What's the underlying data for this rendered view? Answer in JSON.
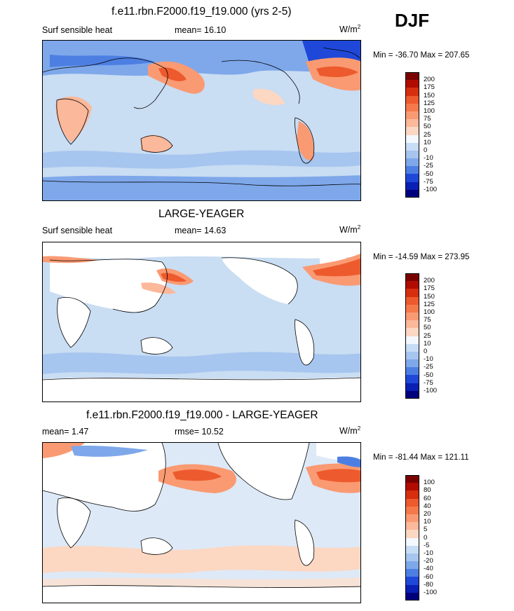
{
  "season": "DJF",
  "panels": [
    {
      "title": "f.e11.rbn.F2000.f19_f19.000 (yrs 2-5)",
      "variable": "Surf sensible heat",
      "stat1": "mean=  16.10",
      "stat2": "",
      "units": "W/m",
      "units_exp": "2",
      "minmax": "Min = -36.70 Max = 207.65",
      "levels": [
        "200",
        "175",
        "150",
        "125",
        "100",
        "75",
        "50",
        "25",
        "10",
        "0",
        "-10",
        "-25",
        "-50",
        "-75",
        "-100"
      ],
      "colors": [
        "#7a0000",
        "#b00c00",
        "#d72e10",
        "#ed5a2d",
        "#f6794b",
        "#fa9a72",
        "#fbb89a",
        "#fcd7c2",
        "#f3f8ff",
        "#c7dcf5",
        "#a6c5ef",
        "#7ea8ea",
        "#4d7fe3",
        "#1f48d9",
        "#0a1fb3",
        "#00007d"
      ]
    },
    {
      "title": "LARGE-YEAGER",
      "variable": "Surf sensible heat",
      "stat1": "mean=  14.63",
      "stat2": "",
      "units": "W/m",
      "units_exp": "2",
      "minmax": "Min = -14.59 Max = 273.95",
      "levels": [
        "200",
        "175",
        "150",
        "125",
        "100",
        "75",
        "50",
        "25",
        "10",
        "0",
        "-10",
        "-25",
        "-50",
        "-75",
        "-100"
      ],
      "colors": [
        "#7a0000",
        "#b00c00",
        "#d72e10",
        "#ed5a2d",
        "#f6794b",
        "#fa9a72",
        "#fbb89a",
        "#fcd7c2",
        "#f3f8ff",
        "#c7dcf5",
        "#a6c5ef",
        "#7ea8ea",
        "#4d7fe3",
        "#1f48d9",
        "#0a1fb3",
        "#00007d"
      ]
    },
    {
      "title": "f.e11.rbn.F2000.f19_f19.000 - LARGE-YEAGER",
      "variable": "mean=   1.47",
      "stat1": "rmse=  10.52",
      "stat2": "",
      "units": "W/m",
      "units_exp": "2",
      "minmax": "Min = -81.44 Max = 121.11",
      "levels": [
        "100",
        "80",
        "60",
        "40",
        "20",
        "10",
        "5",
        "0",
        "-5",
        "-10",
        "-20",
        "-40",
        "-60",
        "-80",
        "-100"
      ],
      "colors": [
        "#7a0000",
        "#b00c00",
        "#d72e10",
        "#ed5a2d",
        "#f6794b",
        "#fa9a72",
        "#fbb89a",
        "#fcd7c2",
        "#f3f8ff",
        "#c7dcf5",
        "#a6c5ef",
        "#7ea8ea",
        "#4d7fe3",
        "#1f48d9",
        "#0a1fb3",
        "#00007d"
      ]
    }
  ],
  "map_colors": {
    "ocean_base": "#c9ddf3",
    "land_blank": "#ffffff",
    "warm_light": "#fcd7c2",
    "warm_mid": "#fa9a72",
    "warm_strong": "#ed5a2d",
    "cool_mid": "#7ea8ea",
    "cool_strong": "#4d7fe3",
    "cool_deep": "#1f48d9"
  }
}
